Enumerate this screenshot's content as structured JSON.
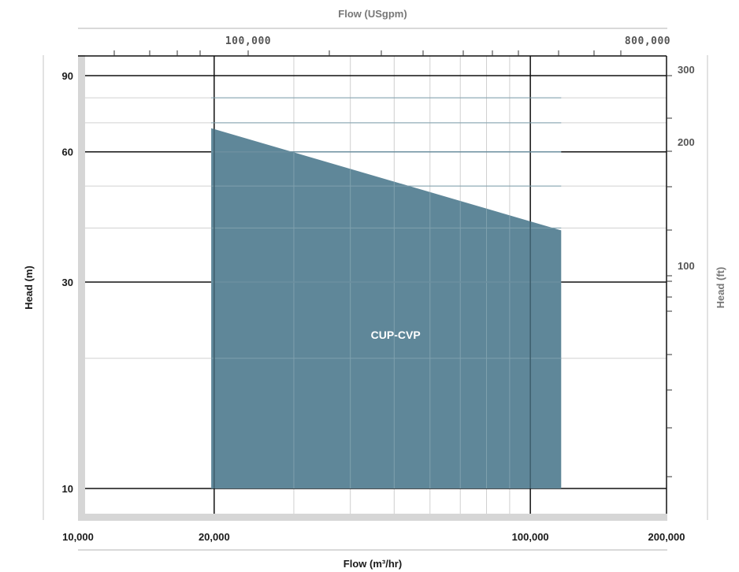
{
  "chart_data": {
    "type": "area",
    "title": "",
    "x_axis_bottom": {
      "label": "Flow (m³/hr)",
      "scale": "log",
      "range": [
        10000,
        200000
      ],
      "ticks": [
        10000,
        20000,
        100000,
        200000
      ],
      "tick_labels": [
        "10,000",
        "20,000",
        "100,000",
        "200,000"
      ]
    },
    "x_axis_top": {
      "label": "Flow (USgpm)",
      "scale": "log",
      "ticks": [
        100000,
        800000
      ],
      "tick_labels": [
        "100,000",
        "800,000"
      ]
    },
    "y_axis_left": {
      "label": "Head (m)",
      "scale": "log",
      "range": [
        8.8,
        100
      ],
      "ticks": [
        10,
        30,
        60,
        90
      ],
      "tick_labels": [
        "10",
        "30",
        "60",
        "90"
      ]
    },
    "y_axis_right": {
      "label": "Head (ft)",
      "scale": "log",
      "ticks": [
        100,
        200,
        300
      ],
      "tick_labels": [
        "100",
        "200",
        "300"
      ]
    },
    "series": [
      {
        "name": "CUP-CVP",
        "color": "#5f8799",
        "polygon": [
          {
            "x": 19700,
            "y": 68
          },
          {
            "x": 117000,
            "y": 39.5
          },
          {
            "x": 117000,
            "y": 10
          },
          {
            "x": 19700,
            "y": 10
          }
        ]
      }
    ],
    "grid": true,
    "legend": "none"
  }
}
